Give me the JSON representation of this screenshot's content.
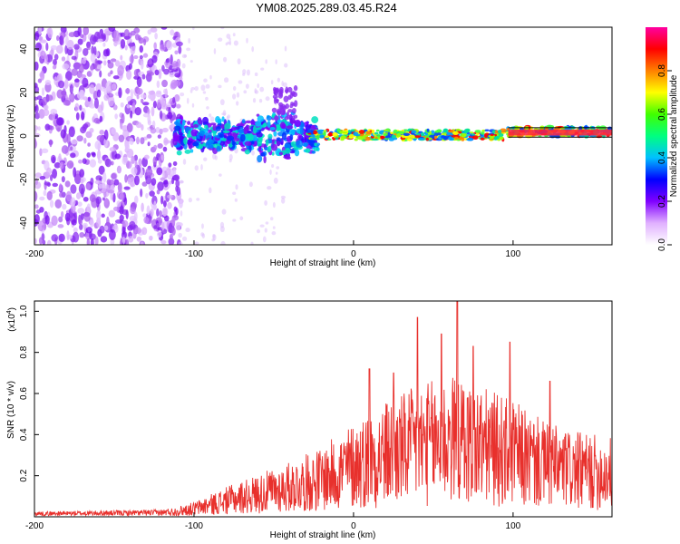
{
  "title": "YM08.2025.289.03.45.R24",
  "chart_data": [
    {
      "type": "heatmap",
      "name": "spectrogram",
      "xlabel": "Height of straight line (km)",
      "ylabel": "Frequency (Hz)",
      "xlim": [
        -200,
        162
      ],
      "ylim": [
        -50,
        50
      ],
      "xticks": [
        -200,
        -100,
        0,
        100
      ],
      "yticks": [
        -40,
        -20,
        0,
        20,
        40
      ],
      "colorbar": {
        "label": "Normalized spectral amplitude",
        "range": [
          0,
          1
        ],
        "ticks": [
          "0.0",
          "0.2",
          "0.4",
          "0.6",
          "0.8"
        ],
        "colors": [
          "#ffffff",
          "#e0b0ff",
          "#8000ff",
          "#0000ff",
          "#00c0ff",
          "#00ff80",
          "#40ff00",
          "#ffff00",
          "#ff8000",
          "#ff0000",
          "#ff00a0"
        ]
      },
      "description_regions": [
        {
          "x_range": [
            -200,
            -110
          ],
          "freq_range": [
            -50,
            50
          ],
          "amplitude": "low scattered"
        },
        {
          "x_range": [
            -110,
            -25
          ],
          "freq_range": [
            -10,
            10
          ],
          "amplitude": "medium"
        },
        {
          "x_range": [
            -25,
            162
          ],
          "freq_range": [
            -2,
            4
          ],
          "amplitude": "high narrow band"
        }
      ]
    },
    {
      "type": "line",
      "name": "snr",
      "xlabel": "Height of straight line (km)",
      "ylabel": "SNR (10 * v/v)",
      "scale_label": "(x10",
      "scale_exp": "4",
      "xlim": [
        -200,
        162
      ],
      "ylim": [
        0,
        1.05
      ],
      "xticks": [
        -200,
        -100,
        0,
        100
      ],
      "yticks": [
        "0.2",
        "0.4",
        "0.6",
        "0.8",
        "1.0"
      ],
      "color": "#e8302c",
      "envelope": {
        "x": [
          -200,
          -120,
          -100,
          -80,
          -60,
          -40,
          -20,
          0,
          20,
          40,
          60,
          80,
          100,
          120,
          140,
          162
        ],
        "y": [
          0.02,
          0.03,
          0.07,
          0.14,
          0.2,
          0.26,
          0.33,
          0.45,
          0.55,
          0.62,
          0.68,
          0.62,
          0.55,
          0.45,
          0.4,
          0.38
        ]
      },
      "peaks": [
        {
          "x": 10,
          "y": 0.72
        },
        {
          "x": 25,
          "y": 0.7
        },
        {
          "x": 40,
          "y": 0.97
        },
        {
          "x": 55,
          "y": 0.89
        },
        {
          "x": 65,
          "y": 1.05
        },
        {
          "x": 75,
          "y": 0.83
        },
        {
          "x": 98,
          "y": 0.85
        },
        {
          "x": 123,
          "y": 0.66
        }
      ]
    }
  ]
}
